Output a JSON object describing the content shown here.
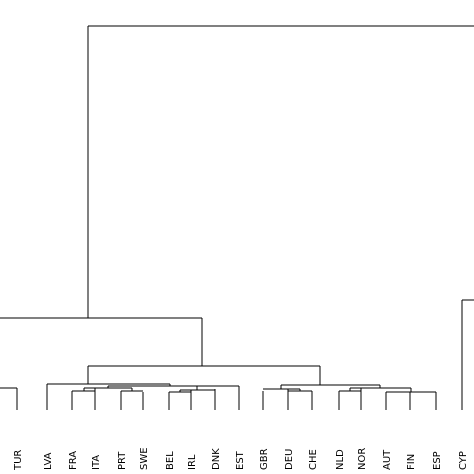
{
  "dendrogram": {
    "leaf_labels": [
      "TUR",
      "LVA",
      "FRA",
      "ITA",
      "PRT",
      "SWE",
      "BEL",
      "IRL",
      "DNK",
      "EST",
      "GBR",
      "DEU",
      "CHE",
      "NLD",
      "NOR",
      "AUT",
      "FIN",
      "ESP",
      "CYP"
    ],
    "colors": {
      "line": "#000000",
      "background": "#ffffff"
    }
  }
}
